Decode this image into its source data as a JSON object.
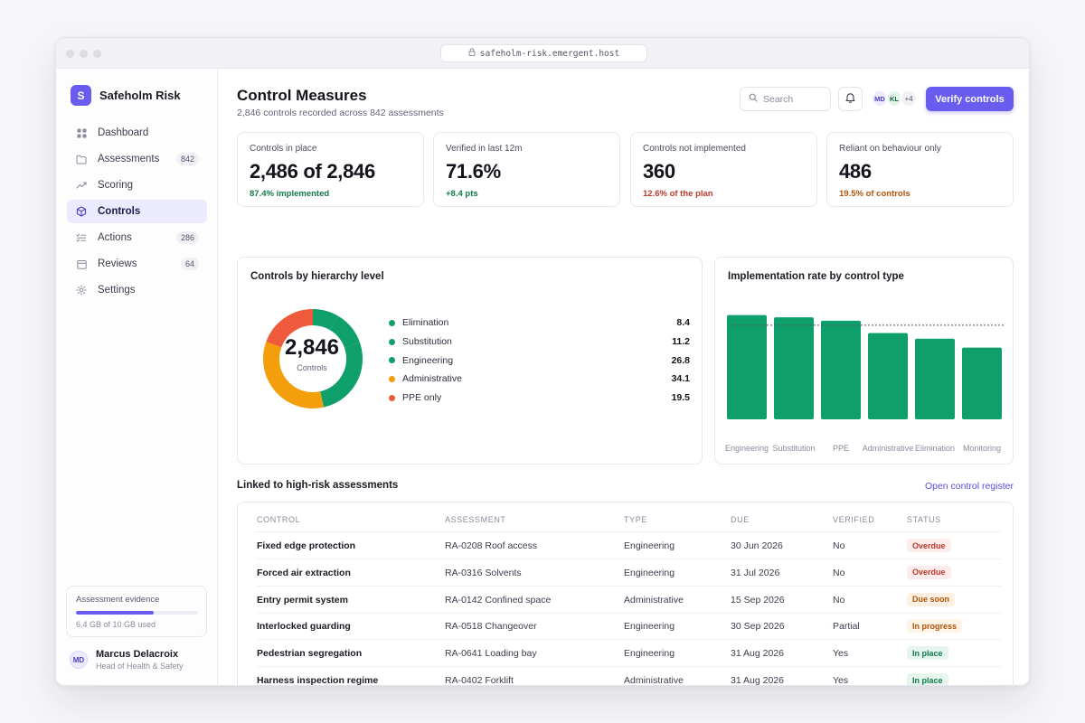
{
  "browser": {
    "url": "safeholm-risk.emergent.host"
  },
  "app": {
    "logo_letter": "S",
    "name": "Safeholm Risk"
  },
  "sidebar": {
    "items": [
      {
        "label": "Dashboard",
        "badge": "",
        "icon": "grid-icon"
      },
      {
        "label": "Assessments",
        "badge": "842",
        "icon": "folder-icon"
      },
      {
        "label": "Scoring",
        "badge": "",
        "icon": "trend-icon"
      },
      {
        "label": "Controls",
        "badge": "",
        "icon": "cube-icon",
        "active": true
      },
      {
        "label": "Actions",
        "badge": "286",
        "icon": "checklist-icon"
      },
      {
        "label": "Reviews",
        "badge": "64",
        "icon": "calendar-icon"
      },
      {
        "label": "Settings",
        "badge": "",
        "icon": "gear-icon"
      }
    ],
    "storage": {
      "label": "Assessment evidence",
      "used_fraction": 0.64,
      "text": "6.4 GB of 10 GB used"
    },
    "user": {
      "initials": "MD",
      "name": "Marcus Delacroix",
      "role": "Head of Health & Safety"
    }
  },
  "header": {
    "title": "Control Measures",
    "subtitle": "2,846 controls recorded across 842 assessments",
    "search_placeholder": "Search",
    "avatars": [
      "MD",
      "KL",
      "+4"
    ],
    "primary_button": "Verify controls"
  },
  "stats": [
    {
      "label": "Controls in place",
      "value": "2,486 of 2,846",
      "note": "87.4% implemented",
      "tone": "#127a4a"
    },
    {
      "label": "Verified in last 12m",
      "value": "71.6%",
      "note": "+8.4 pts",
      "tone": "#127a4a"
    },
    {
      "label": "Controls not implemented",
      "value": "360",
      "note": "12.6% of the plan",
      "tone": "#c0392b"
    },
    {
      "label": "Reliant on behaviour only",
      "value": "486",
      "note": "19.5% of controls",
      "tone": "#b45309"
    }
  ],
  "hierarchy": {
    "title": "Controls by hierarchy level",
    "center_value": "2,846",
    "center_label": "Controls",
    "items": [
      {
        "label": "Elimination",
        "value": "8.4",
        "color": "#0e9f6a"
      },
      {
        "label": "Substitution",
        "value": "11.2",
        "color": "#0e9f6a"
      },
      {
        "label": "Engineering",
        "value": "26.8",
        "color": "#0e9f6a"
      },
      {
        "label": "Administrative",
        "value": "34.1",
        "color": "#f59e0b"
      },
      {
        "label": "PPE only",
        "value": "19.5",
        "color": "#ef5a3c"
      }
    ]
  },
  "chart_data": {
    "type": "bar",
    "title": "Implementation rate by control type",
    "categories": [
      "Engineering",
      "Substitution",
      "PPE",
      "Administrative",
      "Elimination",
      "Monitoring"
    ],
    "values": [
      93,
      91,
      88,
      77,
      72,
      64
    ],
    "ylim": [
      0,
      100
    ],
    "target": 84,
    "color": "#0e9f6a",
    "grid": false
  },
  "linked": {
    "title": "Linked to high-risk assessments",
    "link": "Open control register",
    "columns": [
      "CONTROL",
      "ASSESSMENT",
      "TYPE",
      "DUE",
      "VERIFIED",
      "STATUS"
    ],
    "rows": [
      {
        "control": "Fixed edge protection",
        "assessment": "RA-0208 Roof access",
        "type": "Engineering",
        "due": "30 Jun 2026",
        "verified": "No",
        "status": "Overdue",
        "status_bg": "#fdecec",
        "status_fg": "#c0392b"
      },
      {
        "control": "Forced air extraction",
        "assessment": "RA-0316 Solvents",
        "type": "Engineering",
        "due": "31 Jul 2026",
        "verified": "No",
        "status": "Overdue",
        "status_bg": "#fdecec",
        "status_fg": "#c0392b"
      },
      {
        "control": "Entry permit system",
        "assessment": "RA-0142 Confined space",
        "type": "Administrative",
        "due": "15 Sep 2026",
        "verified": "No",
        "status": "Due soon",
        "status_bg": "#fdf1e3",
        "status_fg": "#b45309"
      },
      {
        "control": "Interlocked guarding",
        "assessment": "RA-0518 Changeover",
        "type": "Engineering",
        "due": "30 Sep 2026",
        "verified": "Partial",
        "status": "In progress",
        "status_bg": "#fdf3e6",
        "status_fg": "#b45309"
      },
      {
        "control": "Pedestrian segregation",
        "assessment": "RA-0641 Loading bay",
        "type": "Engineering",
        "due": "31 Aug 2026",
        "verified": "Yes",
        "status": "In place",
        "status_bg": "#e6f6ee",
        "status_fg": "#127a4a"
      },
      {
        "control": "Harness inspection regime",
        "assessment": "RA-0402 Forklift",
        "type": "Administrative",
        "due": "31 Aug 2026",
        "verified": "Yes",
        "status": "In place",
        "status_bg": "#e6f6ee",
        "status_fg": "#127a4a"
      }
    ]
  }
}
